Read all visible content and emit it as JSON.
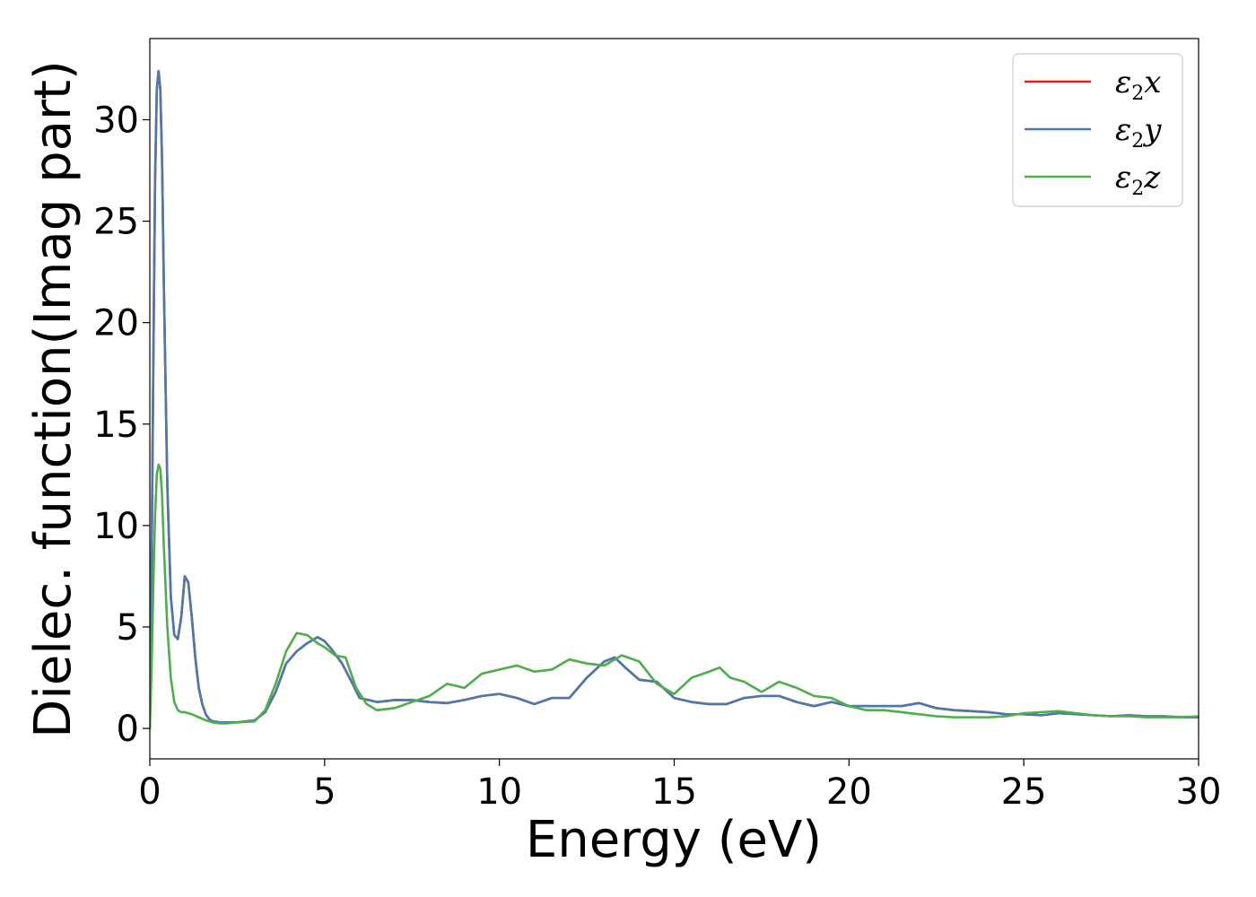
{
  "chart_data": {
    "type": "line",
    "xlabel": "Energy (eV)",
    "ylabel": "Dielec. function(Imag part)",
    "xlim": [
      0,
      30
    ],
    "ylim": [
      -1.5,
      34
    ],
    "xticks": [
      0,
      5,
      10,
      15,
      20,
      25,
      30
    ],
    "yticks": [
      0,
      5,
      10,
      15,
      20,
      25,
      30
    ],
    "xtick_labels": [
      "0",
      "5",
      "10",
      "15",
      "20",
      "25",
      "30"
    ],
    "ytick_labels": [
      "0",
      "5",
      "10",
      "15",
      "20",
      "25",
      "30"
    ],
    "grid": false,
    "legend_position": "top-right",
    "series": [
      {
        "name_symbol": "ε",
        "name_sub": "2",
        "name_var": "x",
        "color": "#e41a1c",
        "x": [
          0,
          0.05,
          0.1,
          0.15,
          0.2,
          0.25,
          0.3,
          0.35,
          0.4,
          0.5,
          0.6,
          0.7,
          0.8,
          0.9,
          1.0,
          1.1,
          1.2,
          1.3,
          1.4,
          1.5,
          1.6,
          1.7,
          1.8,
          2.0,
          2.2,
          2.5,
          3.0,
          3.3,
          3.6,
          3.9,
          4.2,
          4.5,
          4.8,
          5.0,
          5.2,
          5.5,
          5.8,
          6.0,
          6.5,
          7.0,
          7.5,
          8.0,
          8.5,
          9.0,
          9.5,
          10.0,
          10.5,
          11.0,
          11.5,
          12.0,
          12.5,
          13.0,
          13.3,
          13.6,
          14.0,
          14.5,
          15.0,
          15.5,
          16.0,
          16.5,
          17.0,
          17.5,
          18.0,
          18.5,
          19.0,
          19.5,
          20.0,
          20.5,
          21.0,
          21.5,
          22.0,
          22.5,
          23.0,
          23.5,
          24.0,
          24.5,
          25.0,
          25.5,
          26.0,
          26.5,
          27.0,
          27.5,
          28.0,
          28.5,
          29.0,
          29.5,
          30.0
        ],
        "y": [
          0,
          8,
          18,
          27,
          31.5,
          32.4,
          31.5,
          28,
          22,
          12,
          6.5,
          4.6,
          4.4,
          5.5,
          7.5,
          7.2,
          5.5,
          3.5,
          2.0,
          1.2,
          0.7,
          0.45,
          0.35,
          0.3,
          0.3,
          0.3,
          0.4,
          0.8,
          1.8,
          3.2,
          3.8,
          4.2,
          4.5,
          4.3,
          3.9,
          3.2,
          2.2,
          1.5,
          1.3,
          1.4,
          1.4,
          1.3,
          1.25,
          1.4,
          1.6,
          1.7,
          1.5,
          1.2,
          1.5,
          1.5,
          2.5,
          3.3,
          3.5,
          3.0,
          2.4,
          2.3,
          1.5,
          1.3,
          1.2,
          1.2,
          1.5,
          1.6,
          1.6,
          1.3,
          1.1,
          1.3,
          1.1,
          1.1,
          1.1,
          1.1,
          1.25,
          1.0,
          0.9,
          0.85,
          0.8,
          0.7,
          0.7,
          0.65,
          0.75,
          0.7,
          0.65,
          0.6,
          0.65,
          0.6,
          0.6,
          0.55,
          0.55
        ]
      },
      {
        "name_symbol": "ε",
        "name_sub": "2",
        "name_var": "y",
        "color": "#4c78b0",
        "x": [
          0,
          0.05,
          0.1,
          0.15,
          0.2,
          0.25,
          0.3,
          0.35,
          0.4,
          0.5,
          0.6,
          0.7,
          0.8,
          0.9,
          1.0,
          1.1,
          1.2,
          1.3,
          1.4,
          1.5,
          1.6,
          1.7,
          1.8,
          2.0,
          2.2,
          2.5,
          3.0,
          3.3,
          3.6,
          3.9,
          4.2,
          4.5,
          4.8,
          5.0,
          5.2,
          5.5,
          5.8,
          6.0,
          6.5,
          7.0,
          7.5,
          8.0,
          8.5,
          9.0,
          9.5,
          10.0,
          10.5,
          11.0,
          11.5,
          12.0,
          12.5,
          13.0,
          13.3,
          13.6,
          14.0,
          14.5,
          15.0,
          15.5,
          16.0,
          16.5,
          17.0,
          17.5,
          18.0,
          18.5,
          19.0,
          19.5,
          20.0,
          20.5,
          21.0,
          21.5,
          22.0,
          22.5,
          23.0,
          23.5,
          24.0,
          24.5,
          25.0,
          25.5,
          26.0,
          26.5,
          27.0,
          27.5,
          28.0,
          28.5,
          29.0,
          29.5,
          30.0
        ],
        "y": [
          0,
          8,
          18,
          27,
          31.5,
          32.4,
          31.5,
          28,
          22,
          12,
          6.5,
          4.6,
          4.4,
          5.5,
          7.5,
          7.2,
          5.5,
          3.5,
          2.0,
          1.2,
          0.7,
          0.45,
          0.35,
          0.3,
          0.3,
          0.3,
          0.4,
          0.8,
          1.8,
          3.2,
          3.8,
          4.2,
          4.5,
          4.3,
          3.9,
          3.2,
          2.2,
          1.5,
          1.3,
          1.4,
          1.4,
          1.3,
          1.25,
          1.4,
          1.6,
          1.7,
          1.5,
          1.2,
          1.5,
          1.5,
          2.5,
          3.3,
          3.5,
          3.0,
          2.4,
          2.3,
          1.5,
          1.3,
          1.2,
          1.2,
          1.5,
          1.6,
          1.6,
          1.3,
          1.1,
          1.3,
          1.1,
          1.1,
          1.1,
          1.1,
          1.25,
          1.0,
          0.9,
          0.85,
          0.8,
          0.7,
          0.7,
          0.65,
          0.75,
          0.7,
          0.65,
          0.6,
          0.65,
          0.6,
          0.6,
          0.55,
          0.55
        ]
      },
      {
        "name_symbol": "ε",
        "name_sub": "2",
        "name_var": "z",
        "color": "#4daf4a",
        "x": [
          0,
          0.05,
          0.1,
          0.15,
          0.2,
          0.25,
          0.3,
          0.35,
          0.4,
          0.5,
          0.6,
          0.7,
          0.8,
          0.9,
          1.0,
          1.2,
          1.4,
          1.6,
          1.8,
          2.0,
          2.2,
          2.5,
          3.0,
          3.3,
          3.6,
          3.9,
          4.2,
          4.5,
          4.8,
          5.0,
          5.3,
          5.6,
          5.9,
          6.2,
          6.5,
          7.0,
          7.5,
          8.0,
          8.5,
          9.0,
          9.5,
          10.0,
          10.5,
          11.0,
          11.5,
          12.0,
          12.5,
          13.0,
          13.5,
          14.0,
          14.5,
          15.0,
          15.5,
          16.0,
          16.3,
          16.6,
          17.0,
          17.5,
          18.0,
          18.5,
          19.0,
          19.5,
          20.0,
          20.5,
          21.0,
          21.5,
          22.0,
          22.5,
          23.0,
          23.5,
          24.0,
          24.5,
          25.0,
          25.5,
          26.0,
          26.5,
          27.0,
          27.5,
          28.0,
          28.5,
          29.0,
          29.5,
          30.0
        ],
        "y": [
          0,
          3,
          7,
          10.5,
          12.5,
          13.0,
          12.8,
          11.5,
          9.0,
          5.0,
          2.5,
          1.3,
          0.9,
          0.8,
          0.8,
          0.7,
          0.55,
          0.4,
          0.3,
          0.25,
          0.25,
          0.3,
          0.35,
          0.9,
          2.2,
          3.8,
          4.7,
          4.6,
          4.2,
          4.0,
          3.6,
          3.5,
          2.0,
          1.2,
          0.9,
          1.0,
          1.3,
          1.6,
          2.2,
          2.0,
          2.7,
          2.9,
          3.1,
          2.8,
          2.9,
          3.4,
          3.2,
          3.1,
          3.6,
          3.3,
          2.2,
          1.7,
          2.5,
          2.8,
          3.0,
          2.5,
          2.3,
          1.8,
          2.3,
          2.0,
          1.6,
          1.5,
          1.1,
          0.9,
          0.9,
          0.8,
          0.7,
          0.6,
          0.55,
          0.55,
          0.55,
          0.6,
          0.75,
          0.8,
          0.85,
          0.75,
          0.65,
          0.6,
          0.6,
          0.55,
          0.55,
          0.55,
          0.6
        ]
      }
    ]
  }
}
